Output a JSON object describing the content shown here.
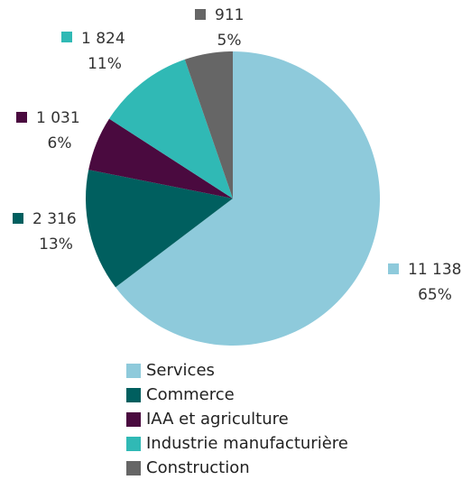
{
  "chart_data": {
    "type": "pie",
    "categories": [
      "Services",
      "Commerce",
      "IAA et agriculture",
      "Industrie manufacturière",
      "Construction"
    ],
    "values": [
      11138,
      2316,
      1031,
      1824,
      911
    ],
    "value_labels": [
      "11 138",
      "2 316",
      "1 031",
      "1 824",
      "911"
    ],
    "percentages": [
      65,
      13,
      6,
      11,
      5
    ],
    "percentage_labels": [
      "65%",
      "13%",
      "6%",
      "11%",
      "5%"
    ],
    "colors": [
      "#8ecadb",
      "#005f5f",
      "#4a0a3f",
      "#30b9b5",
      "#666666"
    ],
    "legend": "bottom"
  }
}
